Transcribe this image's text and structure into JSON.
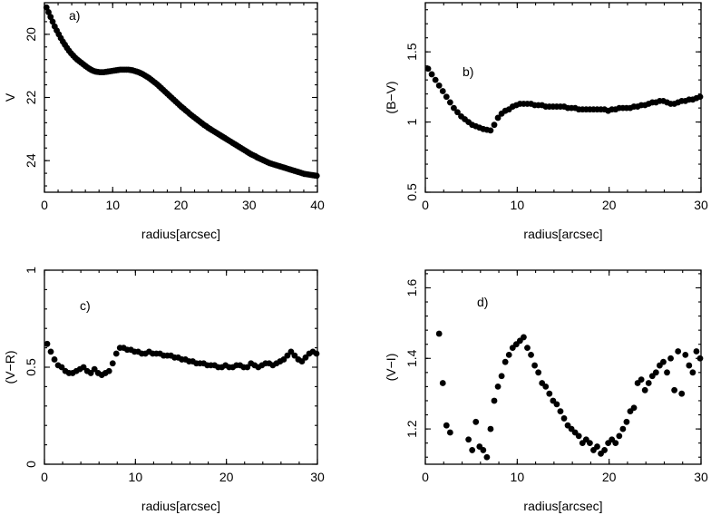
{
  "chart_data": [
    {
      "type": "scatter",
      "panel_label": "a)",
      "xlabel": "radius[arcsec]",
      "ylabel": "V",
      "xlim": [
        0,
        40
      ],
      "ylim": [
        25,
        19
      ],
      "y_inverted": true,
      "xticks": [
        0,
        10,
        20,
        30,
        40
      ],
      "yticks": [
        20,
        22,
        24
      ],
      "x": [
        0.3,
        0.6,
        0.9,
        1.2,
        1.5,
        1.8,
        2.1,
        2.4,
        2.7,
        3.0,
        3.3,
        3.6,
        3.9,
        4.2,
        4.5,
        4.8,
        5.1,
        5.4,
        5.7,
        6.0,
        6.3,
        6.6,
        6.9,
        7.2,
        7.5,
        7.8,
        8.1,
        8.4,
        8.7,
        9.0,
        9.3,
        9.6,
        9.9,
        10.2,
        10.5,
        10.8,
        11.1,
        11.4,
        11.7,
        12.0,
        12.3,
        12.6,
        12.9,
        13.2,
        13.5,
        13.8,
        14.1,
        14.4,
        14.7,
        15.0,
        15.3,
        15.6,
        15.9,
        16.2,
        16.5,
        16.8,
        17.1,
        17.4,
        17.7,
        18.0,
        18.3,
        18.6,
        18.9,
        19.2,
        19.5,
        19.8,
        20.1,
        20.4,
        20.7,
        21.0,
        21.3,
        21.6,
        21.9,
        22.2,
        22.5,
        22.8,
        23.1,
        23.4,
        23.7,
        24.0,
        24.3,
        24.6,
        24.9,
        25.2,
        25.5,
        25.8,
        26.1,
        26.4,
        26.7,
        27.0,
        27.3,
        27.6,
        27.9,
        28.2,
        28.5,
        28.8,
        29.1,
        29.4,
        29.7,
        30.0,
        30.3,
        30.6,
        30.9,
        31.2,
        31.5,
        31.8,
        32.1,
        32.4,
        32.7,
        33.0,
        33.3,
        33.6,
        33.9,
        34.2,
        34.5,
        34.8,
        35.1,
        35.4,
        35.7,
        36.0,
        36.3,
        36.6,
        36.9,
        37.2,
        37.5,
        37.8,
        38.1,
        38.4,
        38.7,
        39.0,
        39.3,
        39.6,
        39.9
      ],
      "y": [
        19.15,
        19.3,
        19.45,
        19.6,
        19.75,
        19.88,
        20.0,
        20.12,
        20.23,
        20.33,
        20.43,
        20.52,
        20.6,
        20.67,
        20.74,
        20.8,
        20.85,
        20.9,
        20.95,
        21.0,
        21.05,
        21.09,
        21.13,
        21.16,
        21.18,
        21.19,
        21.2,
        21.2,
        21.2,
        21.19,
        21.18,
        21.17,
        21.16,
        21.15,
        21.14,
        21.13,
        21.12,
        21.12,
        21.12,
        21.12,
        21.12,
        21.13,
        21.14,
        21.16,
        21.18,
        21.2,
        21.23,
        21.26,
        21.3,
        21.34,
        21.38,
        21.43,
        21.48,
        21.53,
        21.58,
        21.64,
        21.7,
        21.76,
        21.82,
        21.88,
        21.94,
        22.0,
        22.06,
        22.12,
        22.18,
        22.24,
        22.3,
        22.35,
        22.41,
        22.46,
        22.52,
        22.57,
        22.62,
        22.67,
        22.72,
        22.77,
        22.82,
        22.87,
        22.91,
        22.96,
        23.0,
        23.04,
        23.08,
        23.12,
        23.16,
        23.2,
        23.24,
        23.28,
        23.32,
        23.36,
        23.4,
        23.44,
        23.48,
        23.52,
        23.56,
        23.6,
        23.64,
        23.68,
        23.72,
        23.76,
        23.8,
        23.83,
        23.86,
        23.9,
        23.93,
        23.96,
        23.99,
        24.02,
        24.05,
        24.08,
        24.1,
        24.12,
        24.14,
        24.16,
        24.18,
        24.2,
        24.22,
        24.24,
        24.26,
        24.28,
        24.3,
        24.32,
        24.34,
        24.36,
        24.38,
        24.4,
        24.42,
        24.43,
        24.44,
        24.45,
        24.46,
        24.47,
        24.48
      ]
    },
    {
      "type": "scatter",
      "panel_label": "b)",
      "xlabel": "radius[arcsec]",
      "ylabel": "(B−V)",
      "xlim": [
        0,
        30
      ],
      "ylim": [
        0.5,
        1.85
      ],
      "xticks": [
        0,
        10,
        20,
        30
      ],
      "yticks": [
        0.5,
        1,
        1.5
      ],
      "ytick_labels": [
        "0.5",
        "1",
        "1.5"
      ],
      "x": [
        0.3,
        0.7,
        1.1,
        1.5,
        1.9,
        2.3,
        2.7,
        3.1,
        3.5,
        3.9,
        4.3,
        4.7,
        5.1,
        5.5,
        5.9,
        6.3,
        6.7,
        7.1,
        7.5,
        7.9,
        8.3,
        8.7,
        9.1,
        9.5,
        9.9,
        10.3,
        10.7,
        11.1,
        11.5,
        11.9,
        12.3,
        12.7,
        13.1,
        13.5,
        13.9,
        14.3,
        14.7,
        15.1,
        15.5,
        15.9,
        16.3,
        16.7,
        17.1,
        17.5,
        17.9,
        18.3,
        18.7,
        19.1,
        19.5,
        19.9,
        20.3,
        20.7,
        21.1,
        21.5,
        21.9,
        22.3,
        22.7,
        23.1,
        23.5,
        23.9,
        24.3,
        24.7,
        25.1,
        25.5,
        25.9,
        26.3,
        26.7,
        27.1,
        27.5,
        27.9,
        28.3,
        28.7,
        29.1,
        29.5,
        29.9
      ],
      "y": [
        1.38,
        1.34,
        1.3,
        1.26,
        1.22,
        1.18,
        1.14,
        1.1,
        1.07,
        1.04,
        1.02,
        1.0,
        0.98,
        0.97,
        0.96,
        0.95,
        0.945,
        0.94,
        0.98,
        1.03,
        1.06,
        1.08,
        1.09,
        1.11,
        1.12,
        1.13,
        1.13,
        1.13,
        1.13,
        1.12,
        1.12,
        1.12,
        1.11,
        1.11,
        1.11,
        1.11,
        1.11,
        1.11,
        1.1,
        1.1,
        1.1,
        1.09,
        1.09,
        1.09,
        1.09,
        1.09,
        1.09,
        1.09,
        1.09,
        1.08,
        1.09,
        1.09,
        1.1,
        1.1,
        1.1,
        1.1,
        1.11,
        1.11,
        1.12,
        1.12,
        1.13,
        1.14,
        1.14,
        1.15,
        1.15,
        1.14,
        1.13,
        1.13,
        1.14,
        1.15,
        1.15,
        1.16,
        1.16,
        1.17,
        1.18
      ]
    },
    {
      "type": "scatter",
      "panel_label": "c)",
      "xlabel": "radius[arcsec]",
      "ylabel": "(V−R)",
      "xlim": [
        0,
        30
      ],
      "ylim": [
        0,
        1
      ],
      "xticks": [
        0,
        10,
        20,
        30
      ],
      "yticks": [
        0,
        0.5,
        1
      ],
      "ytick_labels": [
        "0",
        "0.5",
        "1"
      ],
      "x": [
        0.3,
        0.7,
        1.1,
        1.5,
        1.9,
        2.3,
        2.7,
        3.1,
        3.5,
        3.9,
        4.3,
        4.7,
        5.1,
        5.5,
        5.9,
        6.3,
        6.7,
        7.1,
        7.5,
        7.9,
        8.3,
        8.7,
        9.1,
        9.5,
        9.9,
        10.3,
        10.7,
        11.1,
        11.5,
        11.9,
        12.3,
        12.7,
        13.1,
        13.5,
        13.9,
        14.3,
        14.7,
        15.1,
        15.5,
        15.9,
        16.3,
        16.7,
        17.1,
        17.5,
        17.9,
        18.3,
        18.7,
        19.1,
        19.5,
        19.9,
        20.3,
        20.7,
        21.1,
        21.5,
        21.9,
        22.3,
        22.7,
        23.1,
        23.5,
        23.9,
        24.3,
        24.7,
        25.1,
        25.5,
        25.9,
        26.3,
        26.7,
        27.1,
        27.5,
        27.9,
        28.3,
        28.7,
        29.1,
        29.5,
        29.9
      ],
      "y": [
        0.62,
        0.58,
        0.54,
        0.51,
        0.5,
        0.48,
        0.47,
        0.47,
        0.48,
        0.49,
        0.5,
        0.48,
        0.47,
        0.49,
        0.47,
        0.46,
        0.47,
        0.48,
        0.52,
        0.57,
        0.6,
        0.6,
        0.59,
        0.59,
        0.58,
        0.58,
        0.57,
        0.57,
        0.58,
        0.57,
        0.57,
        0.57,
        0.56,
        0.56,
        0.56,
        0.55,
        0.55,
        0.54,
        0.54,
        0.53,
        0.53,
        0.52,
        0.52,
        0.52,
        0.51,
        0.51,
        0.51,
        0.5,
        0.5,
        0.51,
        0.5,
        0.5,
        0.51,
        0.51,
        0.5,
        0.5,
        0.52,
        0.51,
        0.5,
        0.51,
        0.52,
        0.52,
        0.51,
        0.52,
        0.53,
        0.54,
        0.56,
        0.58,
        0.56,
        0.54,
        0.53,
        0.55,
        0.57,
        0.58,
        0.57
      ]
    },
    {
      "type": "scatter",
      "panel_label": "d)",
      "xlabel": "radius[arcsec]",
      "ylabel": "(V−I)",
      "xlim": [
        0,
        30
      ],
      "ylim": [
        1.1,
        1.65
      ],
      "xticks": [
        0,
        10,
        20,
        30
      ],
      "yticks": [
        1.2,
        1.4,
        1.6
      ],
      "ytick_labels": [
        "1.2",
        "1.4",
        "1.6"
      ],
      "x": [
        1.5,
        1.9,
        2.3,
        2.7,
        4.7,
        5.1,
        5.5,
        5.9,
        6.3,
        6.7,
        7.1,
        7.5,
        7.9,
        8.3,
        8.7,
        9.1,
        9.5,
        9.9,
        10.3,
        10.7,
        11.1,
        11.5,
        11.9,
        12.3,
        12.7,
        13.1,
        13.5,
        13.9,
        14.3,
        14.7,
        15.1,
        15.5,
        15.9,
        16.3,
        16.7,
        17.1,
        17.5,
        17.9,
        18.3,
        18.7,
        19.1,
        19.5,
        19.9,
        20.3,
        20.7,
        21.1,
        21.5,
        21.9,
        22.3,
        22.7,
        23.1,
        23.5,
        23.9,
        24.3,
        24.7,
        25.1,
        25.5,
        25.9,
        26.3,
        26.7,
        27.1,
        27.5,
        27.9,
        28.3,
        28.7,
        29.1,
        29.5,
        29.9
      ],
      "y": [
        1.47,
        1.33,
        1.21,
        1.19,
        1.17,
        1.14,
        1.22,
        1.15,
        1.14,
        1.12,
        1.2,
        1.28,
        1.32,
        1.35,
        1.39,
        1.41,
        1.43,
        1.44,
        1.45,
        1.46,
        1.43,
        1.41,
        1.38,
        1.36,
        1.33,
        1.32,
        1.3,
        1.28,
        1.27,
        1.25,
        1.23,
        1.21,
        1.2,
        1.19,
        1.18,
        1.16,
        1.17,
        1.16,
        1.14,
        1.15,
        1.13,
        1.14,
        1.16,
        1.17,
        1.16,
        1.18,
        1.2,
        1.22,
        1.25,
        1.26,
        1.33,
        1.34,
        1.31,
        1.33,
        1.35,
        1.36,
        1.38,
        1.39,
        1.36,
        1.4,
        1.31,
        1.42,
        1.3,
        1.41,
        1.38,
        1.36,
        1.42,
        1.4
      ]
    }
  ]
}
